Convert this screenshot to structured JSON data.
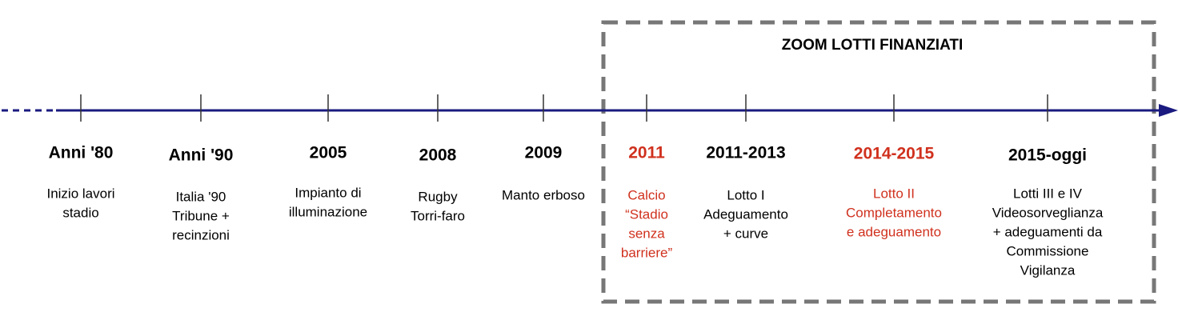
{
  "zoom_title": "ZOOM LOTTI FINANZIATI",
  "events": [
    {
      "label": "Anni '80",
      "color": "#000000",
      "description": [
        "Inizio lavori",
        "stadio"
      ]
    },
    {
      "label": "Anni '90",
      "color": "#000000",
      "description": [
        "Italia '90",
        "Tribune +",
        "recinzioni"
      ]
    },
    {
      "label": "2005",
      "color": "#000000",
      "description": [
        "Impianto di",
        "illuminazione"
      ]
    },
    {
      "label": "2008",
      "color": "#000000",
      "description": [
        "Rugby",
        "Torri-faro"
      ]
    },
    {
      "label": "2009",
      "color": "#000000",
      "description": [
        "Manto erboso"
      ]
    },
    {
      "label": "2011",
      "color": "#d0311e",
      "description": [
        "Calcio",
        "“Stadio",
        "senza",
        "barriere”"
      ]
    },
    {
      "label": "2011-2013",
      "color": "#000000",
      "description": [
        "Lotto I",
        "Adeguamento",
        "+ curve"
      ]
    },
    {
      "label": "2014-2015",
      "color": "#d0311e",
      "description": [
        "Lotto II",
        "Completamento",
        "e adeguamento"
      ]
    },
    {
      "label": "2015-oggi",
      "color": "#000000",
      "description": [
        "Lotti III e IV",
        "Videosorveglianza",
        "+ adeguamenti da",
        "Commissione",
        "Vigilanza"
      ]
    }
  ]
}
